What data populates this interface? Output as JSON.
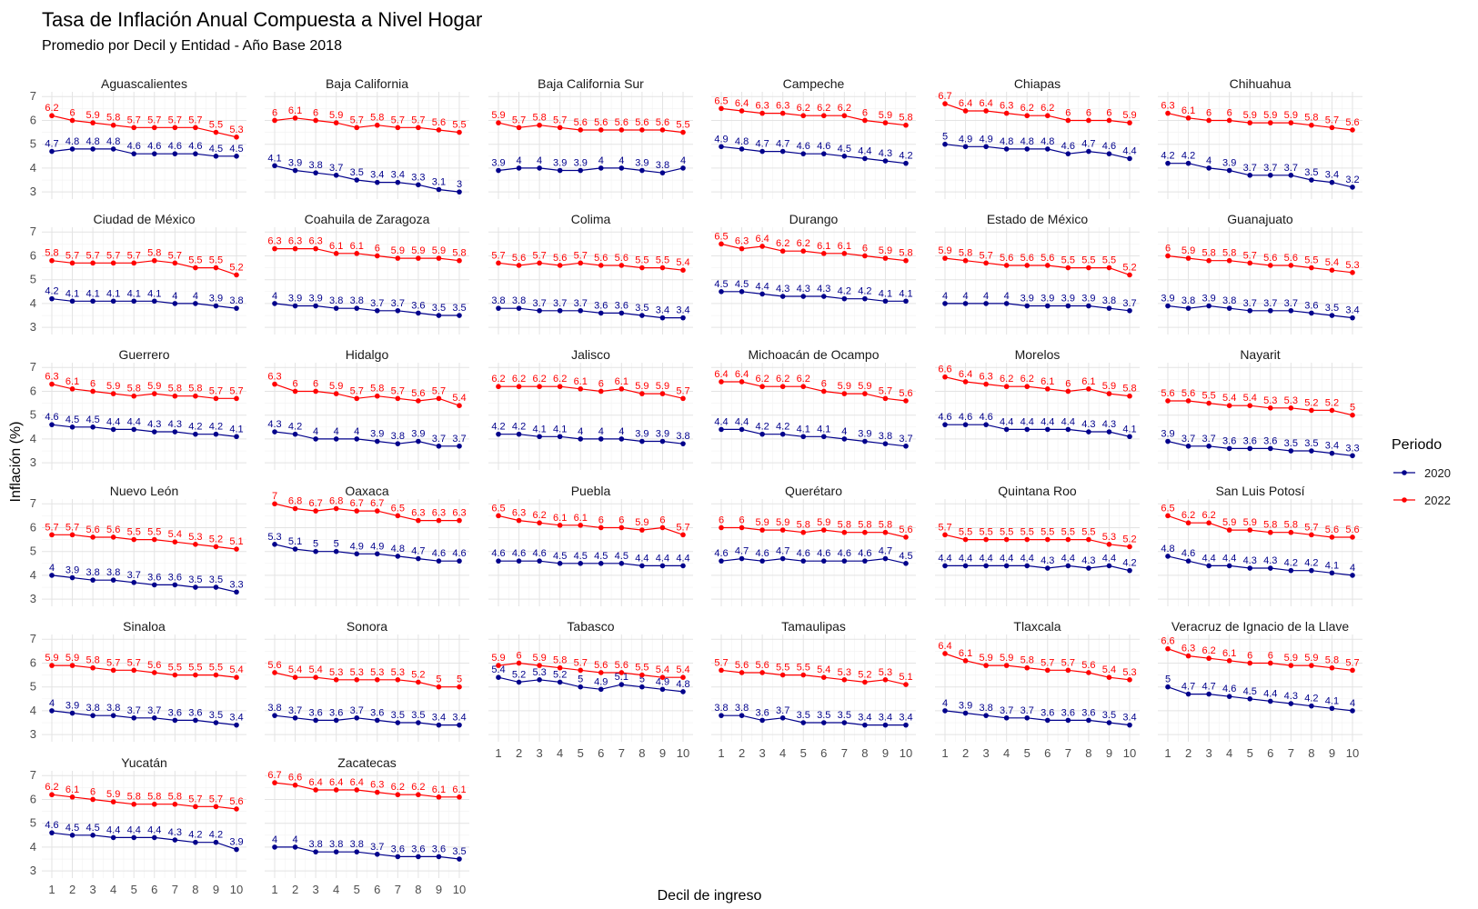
{
  "chart_data": {
    "type": "line",
    "title": "Tasa de Inflación Anual Compuesta a Nivel Hogar",
    "subtitle": "Promedio por Decil y Entidad - Año Base 2018",
    "xlabel": "Decil de ingreso",
    "ylabel": "Inflación (%)",
    "x": [
      1,
      2,
      3,
      4,
      5,
      6,
      7,
      8,
      9,
      10
    ],
    "yticks": [
      3,
      4,
      5,
      6,
      7
    ],
    "ylim": [
      2.7,
      7.2
    ],
    "grid": true,
    "legend": {
      "title": "Periodo",
      "position": "right",
      "entries": [
        {
          "name": "2020",
          "color": "#00008B"
        },
        {
          "name": "2022",
          "color": "#FF0000"
        }
      ]
    },
    "panels": [
      {
        "name": "Aguascalientes",
        "s2020": [
          4.7,
          4.8,
          4.8,
          4.8,
          4.6,
          4.6,
          4.6,
          4.6,
          4.5,
          4.5
        ],
        "s2022": [
          6.2,
          6,
          5.9,
          5.8,
          5.7,
          5.7,
          5.7,
          5.7,
          5.5,
          5.3
        ]
      },
      {
        "name": "Baja California",
        "s2020": [
          4.1,
          3.9,
          3.8,
          3.7,
          3.5,
          3.4,
          3.4,
          3.3,
          3.1,
          3
        ],
        "s2022": [
          6,
          6.1,
          6,
          5.9,
          5.7,
          5.8,
          5.7,
          5.7,
          5.6,
          5.5
        ]
      },
      {
        "name": "Baja California Sur",
        "s2020": [
          3.9,
          4,
          4,
          3.9,
          3.9,
          4,
          4,
          3.9,
          3.8,
          4
        ],
        "s2022": [
          5.9,
          5.7,
          5.8,
          5.7,
          5.6,
          5.6,
          5.6,
          5.6,
          5.6,
          5.5
        ]
      },
      {
        "name": "Campeche",
        "s2020": [
          4.9,
          4.8,
          4.7,
          4.7,
          4.6,
          4.6,
          4.5,
          4.4,
          4.3,
          4.2
        ],
        "s2022": [
          6.5,
          6.4,
          6.3,
          6.3,
          6.2,
          6.2,
          6.2,
          6,
          5.9,
          5.8
        ]
      },
      {
        "name": "Chiapas",
        "s2020": [
          5,
          4.9,
          4.9,
          4.8,
          4.8,
          4.8,
          4.6,
          4.7,
          4.6,
          4.4
        ],
        "s2022": [
          6.7,
          6.4,
          6.4,
          6.3,
          6.2,
          6.2,
          6,
          6,
          6,
          5.9
        ]
      },
      {
        "name": "Chihuahua",
        "s2020": [
          4.2,
          4.2,
          4,
          3.9,
          3.7,
          3.7,
          3.7,
          3.5,
          3.4,
          3.2
        ],
        "s2022": [
          6.3,
          6.1,
          6,
          6,
          5.9,
          5.9,
          5.9,
          5.8,
          5.7,
          5.6
        ]
      },
      {
        "name": "Ciudad de México",
        "s2020": [
          4.2,
          4.1,
          4.1,
          4.1,
          4.1,
          4.1,
          4,
          4,
          3.9,
          3.8
        ],
        "s2022": [
          5.8,
          5.7,
          5.7,
          5.7,
          5.7,
          5.8,
          5.7,
          5.5,
          5.5,
          5.2
        ]
      },
      {
        "name": "Coahuila de Zaragoza",
        "s2020": [
          4,
          3.9,
          3.9,
          3.8,
          3.8,
          3.7,
          3.7,
          3.6,
          3.5,
          3.5
        ],
        "s2022": [
          6.3,
          6.3,
          6.3,
          6.1,
          6.1,
          6,
          5.9,
          5.9,
          5.9,
          5.8
        ]
      },
      {
        "name": "Colima",
        "s2020": [
          3.8,
          3.8,
          3.7,
          3.7,
          3.7,
          3.6,
          3.6,
          3.5,
          3.4,
          3.4
        ],
        "s2022": [
          5.7,
          5.6,
          5.7,
          5.6,
          5.7,
          5.6,
          5.6,
          5.5,
          5.5,
          5.4
        ]
      },
      {
        "name": "Durango",
        "s2020": [
          4.5,
          4.5,
          4.4,
          4.3,
          4.3,
          4.3,
          4.2,
          4.2,
          4.1,
          4.1
        ],
        "s2022": [
          6.5,
          6.3,
          6.4,
          6.2,
          6.2,
          6.1,
          6.1,
          6,
          5.9,
          5.8
        ]
      },
      {
        "name": "Estado de México",
        "s2020": [
          4,
          4,
          4,
          4,
          3.9,
          3.9,
          3.9,
          3.9,
          3.8,
          3.7
        ],
        "s2022": [
          5.9,
          5.8,
          5.7,
          5.6,
          5.6,
          5.6,
          5.5,
          5.5,
          5.5,
          5.2
        ]
      },
      {
        "name": "Guanajuato",
        "s2020": [
          3.9,
          3.8,
          3.9,
          3.8,
          3.7,
          3.7,
          3.7,
          3.6,
          3.5,
          3.4
        ],
        "s2022": [
          6,
          5.9,
          5.8,
          5.8,
          5.7,
          5.6,
          5.6,
          5.5,
          5.4,
          5.3
        ]
      },
      {
        "name": "Guerrero",
        "s2020": [
          4.6,
          4.5,
          4.5,
          4.4,
          4.4,
          4.3,
          4.3,
          4.2,
          4.2,
          4.1
        ],
        "s2022": [
          6.3,
          6.1,
          6,
          5.9,
          5.8,
          5.9,
          5.8,
          5.8,
          5.7,
          5.7
        ]
      },
      {
        "name": "Hidalgo",
        "s2020": [
          4.3,
          4.2,
          4,
          4,
          4,
          3.9,
          3.8,
          3.9,
          3.7,
          3.7
        ],
        "s2022": [
          6.3,
          6,
          6,
          5.9,
          5.7,
          5.8,
          5.7,
          5.6,
          5.7,
          5.4
        ]
      },
      {
        "name": "Jalisco",
        "s2020": [
          4.2,
          4.2,
          4.1,
          4.1,
          4,
          4,
          4,
          3.9,
          3.9,
          3.8
        ],
        "s2022": [
          6.2,
          6.2,
          6.2,
          6.2,
          6.1,
          6,
          6.1,
          5.9,
          5.9,
          5.7
        ]
      },
      {
        "name": "Michoacán de Ocampo",
        "s2020": [
          4.4,
          4.4,
          4.2,
          4.2,
          4.1,
          4.1,
          4,
          3.9,
          3.8,
          3.7
        ],
        "s2022": [
          6.4,
          6.4,
          6.2,
          6.2,
          6.2,
          6,
          5.9,
          5.9,
          5.7,
          5.6
        ]
      },
      {
        "name": "Morelos",
        "s2020": [
          4.6,
          4.6,
          4.6,
          4.4,
          4.4,
          4.4,
          4.4,
          4.3,
          4.3,
          4.1
        ],
        "s2022": [
          6.6,
          6.4,
          6.3,
          6.2,
          6.2,
          6.1,
          6,
          6.1,
          5.9,
          5.8
        ]
      },
      {
        "name": "Nayarit",
        "s2020": [
          3.9,
          3.7,
          3.7,
          3.6,
          3.6,
          3.6,
          3.5,
          3.5,
          3.4,
          3.3
        ],
        "s2022": [
          5.6,
          5.6,
          5.5,
          5.4,
          5.4,
          5.3,
          5.3,
          5.2,
          5.2,
          5
        ]
      },
      {
        "name": "Nuevo León",
        "s2020": [
          4,
          3.9,
          3.8,
          3.8,
          3.7,
          3.6,
          3.6,
          3.5,
          3.5,
          3.3
        ],
        "s2022": [
          5.7,
          5.7,
          5.6,
          5.6,
          5.5,
          5.5,
          5.4,
          5.3,
          5.2,
          5.1
        ]
      },
      {
        "name": "Oaxaca",
        "s2020": [
          5.3,
          5.1,
          5,
          5,
          4.9,
          4.9,
          4.8,
          4.7,
          4.6,
          4.6
        ],
        "s2022": [
          7,
          6.8,
          6.7,
          6.8,
          6.7,
          6.7,
          6.5,
          6.3,
          6.3,
          6.3
        ]
      },
      {
        "name": "Puebla",
        "s2020": [
          4.6,
          4.6,
          4.6,
          4.5,
          4.5,
          4.5,
          4.5,
          4.4,
          4.4,
          4.4
        ],
        "s2022": [
          6.5,
          6.3,
          6.2,
          6.1,
          6.1,
          6,
          6,
          5.9,
          6,
          5.7
        ]
      },
      {
        "name": "Querétaro",
        "s2020": [
          4.6,
          4.7,
          4.6,
          4.7,
          4.6,
          4.6,
          4.6,
          4.6,
          4.7,
          4.5
        ],
        "s2022": [
          6,
          6,
          5.9,
          5.9,
          5.8,
          5.9,
          5.8,
          5.8,
          5.8,
          5.6
        ]
      },
      {
        "name": "Quintana Roo",
        "s2020": [
          4.4,
          4.4,
          4.4,
          4.4,
          4.4,
          4.3,
          4.4,
          4.3,
          4.4,
          4.2
        ],
        "s2022": [
          5.7,
          5.5,
          5.5,
          5.5,
          5.5,
          5.5,
          5.5,
          5.5,
          5.3,
          5.2
        ]
      },
      {
        "name": "San Luis Potosí",
        "s2020": [
          4.8,
          4.6,
          4.4,
          4.4,
          4.3,
          4.3,
          4.2,
          4.2,
          4.1,
          4
        ],
        "s2022": [
          6.5,
          6.2,
          6.2,
          5.9,
          5.9,
          5.8,
          5.8,
          5.7,
          5.6,
          5.6
        ]
      },
      {
        "name": "Sinaloa",
        "s2020": [
          4,
          3.9,
          3.8,
          3.8,
          3.7,
          3.7,
          3.6,
          3.6,
          3.5,
          3.4
        ],
        "s2022": [
          5.9,
          5.9,
          5.8,
          5.7,
          5.7,
          5.6,
          5.5,
          5.5,
          5.5,
          5.4
        ]
      },
      {
        "name": "Sonora",
        "s2020": [
          3.8,
          3.7,
          3.6,
          3.6,
          3.7,
          3.6,
          3.5,
          3.5,
          3.4,
          3.4
        ],
        "s2022": [
          5.6,
          5.4,
          5.4,
          5.3,
          5.3,
          5.3,
          5.3,
          5.2,
          5,
          5
        ]
      },
      {
        "name": "Tabasco",
        "s2020": [
          5.4,
          5.2,
          5.3,
          5.2,
          5,
          4.9,
          5.1,
          5,
          4.9,
          4.8
        ],
        "s2022": [
          5.9,
          6,
          5.9,
          5.8,
          5.7,
          5.6,
          5.6,
          5.5,
          5.4,
          5.4
        ]
      },
      {
        "name": "Tamaulipas",
        "s2020": [
          3.8,
          3.8,
          3.6,
          3.7,
          3.5,
          3.5,
          3.5,
          3.4,
          3.4,
          3.4
        ],
        "s2022": [
          5.7,
          5.6,
          5.6,
          5.5,
          5.5,
          5.4,
          5.3,
          5.2,
          5.3,
          5.1
        ]
      },
      {
        "name": "Tlaxcala",
        "s2020": [
          4,
          3.9,
          3.8,
          3.7,
          3.7,
          3.6,
          3.6,
          3.6,
          3.5,
          3.4
        ],
        "s2022": [
          6.4,
          6.1,
          5.9,
          5.9,
          5.8,
          5.7,
          5.7,
          5.6,
          5.4,
          5.3
        ]
      },
      {
        "name": "Veracruz de Ignacio de la Llave",
        "s2020": [
          5,
          4.7,
          4.7,
          4.6,
          4.5,
          4.4,
          4.3,
          4.2,
          4.1,
          4
        ],
        "s2022": [
          6.6,
          6.3,
          6.2,
          6.1,
          6,
          6,
          5.9,
          5.9,
          5.8,
          5.7
        ]
      },
      {
        "name": "Yucatán",
        "s2020": [
          4.6,
          4.5,
          4.5,
          4.4,
          4.4,
          4.4,
          4.3,
          4.2,
          4.2,
          3.9
        ],
        "s2022": [
          6.2,
          6.1,
          6,
          5.9,
          5.8,
          5.8,
          5.8,
          5.7,
          5.7,
          5.6
        ]
      },
      {
        "name": "Zacatecas",
        "s2020": [
          4,
          4,
          3.8,
          3.8,
          3.8,
          3.7,
          3.6,
          3.6,
          3.6,
          3.5
        ],
        "s2022": [
          6.7,
          6.6,
          6.4,
          6.4,
          6.4,
          6.3,
          6.2,
          6.2,
          6.1,
          6.1
        ]
      }
    ]
  }
}
